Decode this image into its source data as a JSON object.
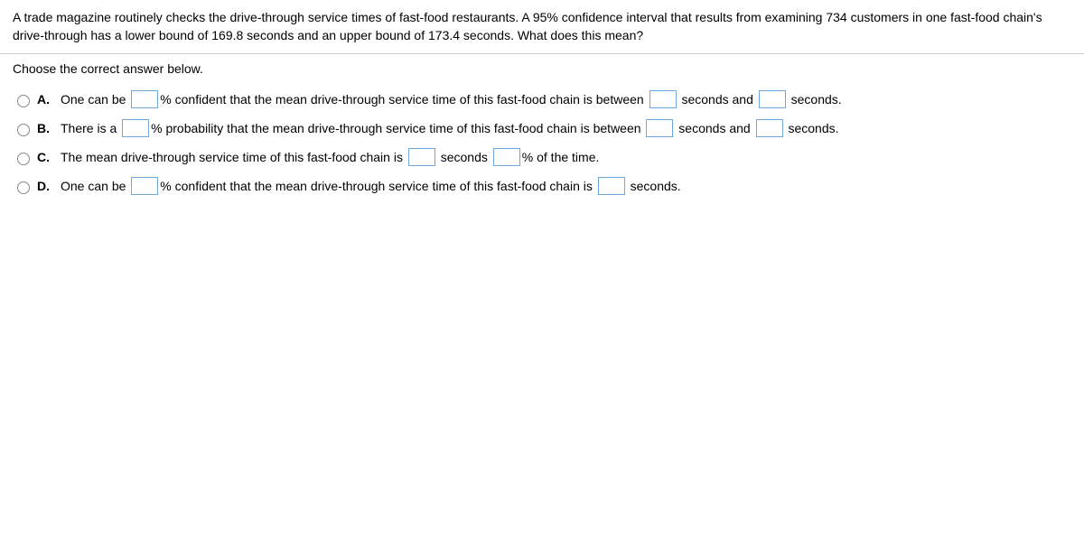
{
  "question": {
    "stem": "A trade magazine routinely checks the drive-through service times of fast-food restaurants. A 95% confidence interval that results from examining 734 customers in one fast-food chain's drive-through has a lower bound of 169.8 seconds and an upper bound of 173.4 seconds. What does this mean?",
    "prompt": "Choose the correct answer below."
  },
  "choices": {
    "a": {
      "letter": "A.",
      "part1": "One can be ",
      "part2": "% confident that the mean drive-through service time of this fast-food chain is between ",
      "part3": " seconds and ",
      "part4": " seconds."
    },
    "b": {
      "letter": "B.",
      "part1": "There is a ",
      "part2": "% probability that the mean drive-through service time of this fast-food chain is between ",
      "part3": " seconds and ",
      "part4": " seconds."
    },
    "c": {
      "letter": "C.",
      "part1": "The mean drive-through service time of this fast-food chain is ",
      "part2": " seconds ",
      "part3": "% of the time."
    },
    "d": {
      "letter": "D.",
      "part1": "One can be ",
      "part2": "% confident that the mean drive-through service time of this fast-food chain is ",
      "part3": " seconds."
    }
  }
}
